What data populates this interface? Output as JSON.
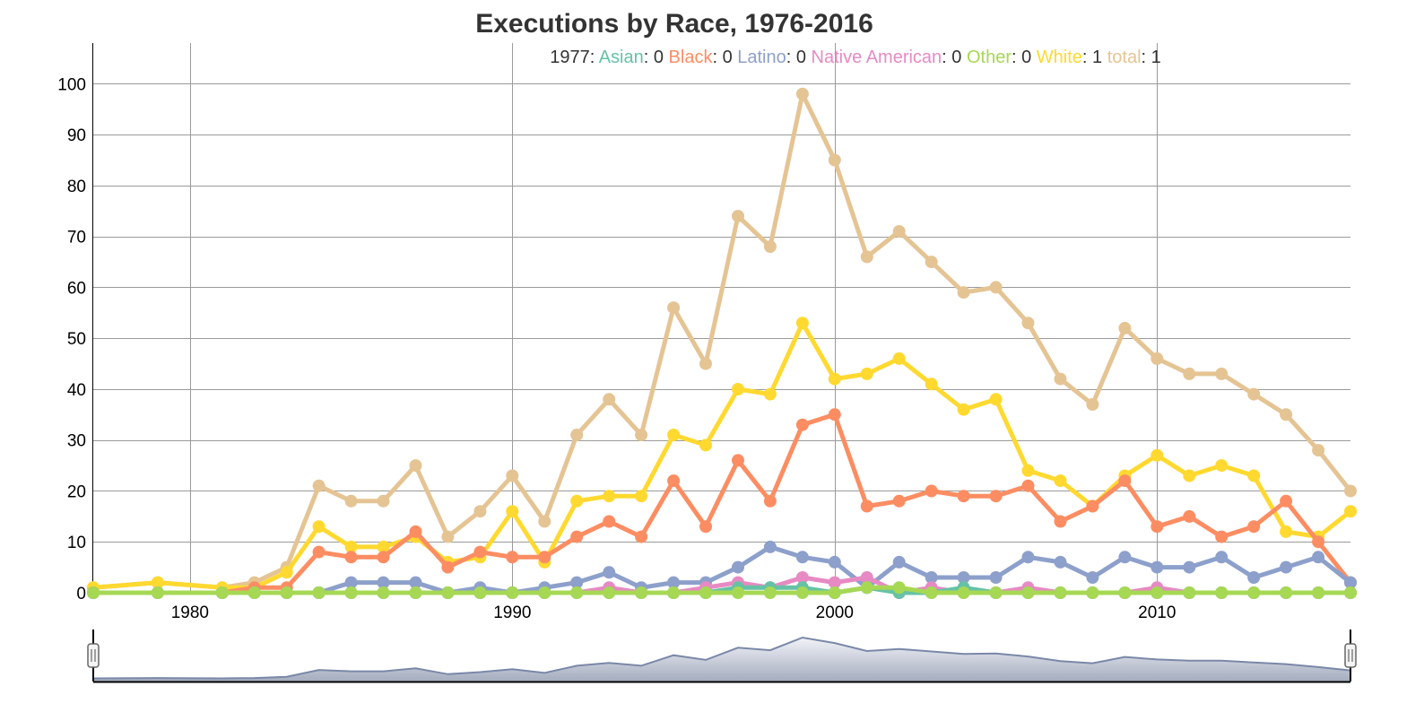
{
  "chart_data": {
    "type": "line",
    "title": "Executions by Race, 1976-2016",
    "xlabel": "",
    "ylabel": "",
    "xlim": [
      1977,
      2016
    ],
    "ylim": [
      0,
      108
    ],
    "xticks": [
      1980,
      1990,
      2000,
      2010
    ],
    "yticks": [
      0,
      10,
      20,
      30,
      40,
      50,
      60,
      70,
      80,
      90,
      100
    ],
    "grid": true,
    "legend_position": "top",
    "legend": {
      "label": "1977",
      "entries": [
        {
          "name": "Asian",
          "value": "0"
        },
        {
          "name": "Black",
          "value": "0"
        },
        {
          "name": "Latino",
          "value": "0"
        },
        {
          "name": "Native American",
          "value": "0"
        },
        {
          "name": "Other",
          "value": "0"
        },
        {
          "name": "White",
          "value": "1"
        },
        {
          "name": "total",
          "value": "1"
        }
      ]
    },
    "x": [
      1977,
      1979,
      1981,
      1982,
      1983,
      1984,
      1985,
      1986,
      1987,
      1988,
      1989,
      1990,
      1991,
      1992,
      1993,
      1994,
      1995,
      1996,
      1997,
      1998,
      1999,
      2000,
      2001,
      2002,
      2003,
      2004,
      2005,
      2006,
      2007,
      2008,
      2009,
      2010,
      2011,
      2012,
      2013,
      2014,
      2015,
      2016
    ],
    "series": [
      {
        "name": "total",
        "color": "#e5c494",
        "values": [
          1,
          2,
          1,
          2,
          5,
          21,
          18,
          18,
          25,
          11,
          16,
          23,
          14,
          31,
          38,
          31,
          56,
          45,
          74,
          68,
          98,
          85,
          66,
          71,
          65,
          59,
          60,
          53,
          42,
          37,
          52,
          46,
          43,
          43,
          39,
          35,
          28,
          20
        ]
      },
      {
        "name": "White",
        "color": "#ffd92f",
        "values": [
          1,
          2,
          1,
          1,
          4,
          13,
          9,
          9,
          11,
          6,
          7,
          16,
          6,
          18,
          19,
          19,
          31,
          29,
          40,
          39,
          53,
          42,
          43,
          46,
          41,
          36,
          38,
          24,
          22,
          17,
          23,
          27,
          23,
          25,
          23,
          12,
          11,
          16
        ]
      },
      {
        "name": "Black",
        "color": "#fc8d62",
        "values": [
          0,
          0,
          0,
          1,
          1,
          8,
          7,
          7,
          12,
          5,
          8,
          7,
          7,
          11,
          14,
          11,
          22,
          13,
          26,
          18,
          33,
          35,
          17,
          18,
          20,
          19,
          19,
          21,
          14,
          17,
          22,
          13,
          15,
          11,
          13,
          18,
          10,
          2
        ]
      },
      {
        "name": "Latino",
        "color": "#8da0cb",
        "values": [
          0,
          0,
          0,
          0,
          0,
          0,
          2,
          2,
          2,
          0,
          1,
          0,
          1,
          2,
          4,
          1,
          2,
          2,
          5,
          9,
          7,
          6,
          1,
          6,
          3,
          3,
          3,
          7,
          6,
          3,
          7,
          5,
          5,
          7,
          3,
          5,
          7,
          2
        ]
      },
      {
        "name": "Native American",
        "color": "#e78ac3",
        "values": [
          0,
          0,
          0,
          0,
          0,
          0,
          0,
          0,
          0,
          0,
          0,
          0,
          0,
          0,
          1,
          0,
          0,
          1,
          2,
          1,
          3,
          2,
          3,
          0,
          1,
          0,
          0,
          1,
          0,
          0,
          0,
          1,
          0,
          0,
          0,
          0,
          0,
          0
        ]
      },
      {
        "name": "Asian",
        "color": "#66c2a5",
        "values": [
          0,
          0,
          0,
          0,
          0,
          0,
          0,
          0,
          0,
          0,
          0,
          0,
          0,
          0,
          0,
          0,
          0,
          0,
          1,
          1,
          1,
          0,
          1,
          0,
          0,
          1,
          0,
          0,
          0,
          0,
          0,
          0,
          0,
          0,
          0,
          0,
          0,
          0
        ]
      },
      {
        "name": "Other",
        "color": "#a6d854",
        "values": [
          0,
          0,
          0,
          0,
          0,
          0,
          0,
          0,
          0,
          0,
          0,
          0,
          0,
          0,
          0,
          0,
          0,
          0,
          0,
          0,
          0,
          0,
          1,
          1,
          0,
          0,
          0,
          0,
          0,
          0,
          0,
          0,
          0,
          0,
          0,
          0,
          0,
          0
        ]
      }
    ],
    "range_selector": {
      "start": 1977,
      "end": 2016
    }
  }
}
